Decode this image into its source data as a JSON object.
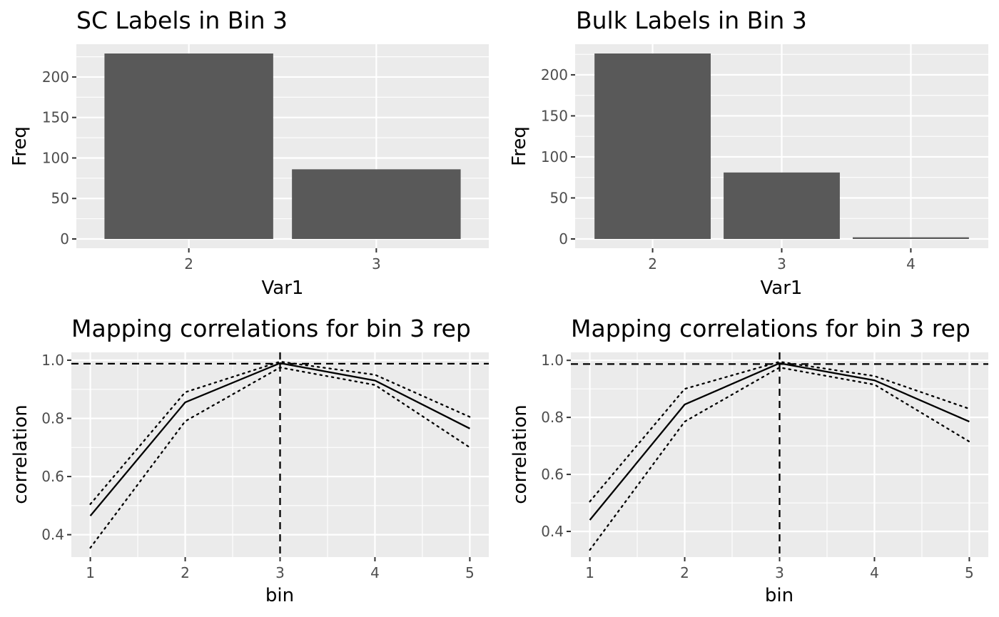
{
  "chart_data": [
    {
      "type": "bar",
      "title": "SC Labels in Bin 3",
      "xlabel": "Var1",
      "ylabel": "Freq",
      "categories": [
        "2",
        "3"
      ],
      "values": [
        229,
        86
      ],
      "ylim": [
        -11.45,
        240.45
      ],
      "yticks": [
        0,
        50,
        100,
        150,
        200
      ],
      "bar_color": "#595959",
      "grid": true
    },
    {
      "type": "bar",
      "title": "Bulk Labels in Bin 3",
      "xlabel": "Var1",
      "ylabel": "Freq",
      "categories": [
        "2",
        "3",
        "4"
      ],
      "values": [
        226,
        81,
        2
      ],
      "ylim": [
        -11.3,
        237.3
      ],
      "yticks": [
        0,
        50,
        100,
        150,
        200
      ],
      "bar_color": "#595959",
      "grid": true
    },
    {
      "type": "line",
      "title": "Mapping correlations for bin 3 rep",
      "xlabel": "bin",
      "ylabel": "correlation",
      "x": [
        1,
        2,
        3,
        4,
        5
      ],
      "series": [
        {
          "values": [
            0.465,
            0.855,
            0.99,
            0.93,
            0.765
          ],
          "style": "solid"
        },
        {
          "values": [
            0.505,
            0.89,
            0.995,
            0.95,
            0.805
          ],
          "style": "dotted"
        },
        {
          "values": [
            0.355,
            0.79,
            0.975,
            0.915,
            0.7
          ],
          "style": "dotted"
        }
      ],
      "hline": 0.988,
      "vline": 3,
      "xlim": [
        0.8,
        5.2
      ],
      "ylim": [
        0.323,
        1.027
      ],
      "xticks": [
        1,
        2,
        3,
        4,
        5
      ],
      "yticks": [
        0.4,
        0.6,
        0.8,
        1.0
      ],
      "ytick_labels": [
        "0.4",
        "0.6",
        "0.8",
        "1.0"
      ],
      "grid": true
    },
    {
      "type": "line",
      "title": "Mapping correlations for bin 3 rep",
      "xlabel": "bin",
      "ylabel": "correlation",
      "x": [
        1,
        2,
        3,
        4,
        5
      ],
      "series": [
        {
          "values": [
            0.44,
            0.845,
            0.99,
            0.93,
            0.785
          ],
          "style": "solid"
        },
        {
          "values": [
            0.505,
            0.9,
            0.995,
            0.945,
            0.83
          ],
          "style": "dotted"
        },
        {
          "values": [
            0.335,
            0.785,
            0.975,
            0.915,
            0.715
          ],
          "style": "dotted"
        }
      ],
      "hline": 0.987,
      "vline": 3,
      "xlim": [
        0.8,
        5.2
      ],
      "ylim": [
        0.31,
        1.028
      ],
      "xticks": [
        1,
        2,
        3,
        4,
        5
      ],
      "yticks": [
        0.4,
        0.6,
        0.8,
        1.0
      ],
      "ytick_labels": [
        "0.4",
        "0.6",
        "0.8",
        "1.0"
      ],
      "grid": true
    }
  ]
}
